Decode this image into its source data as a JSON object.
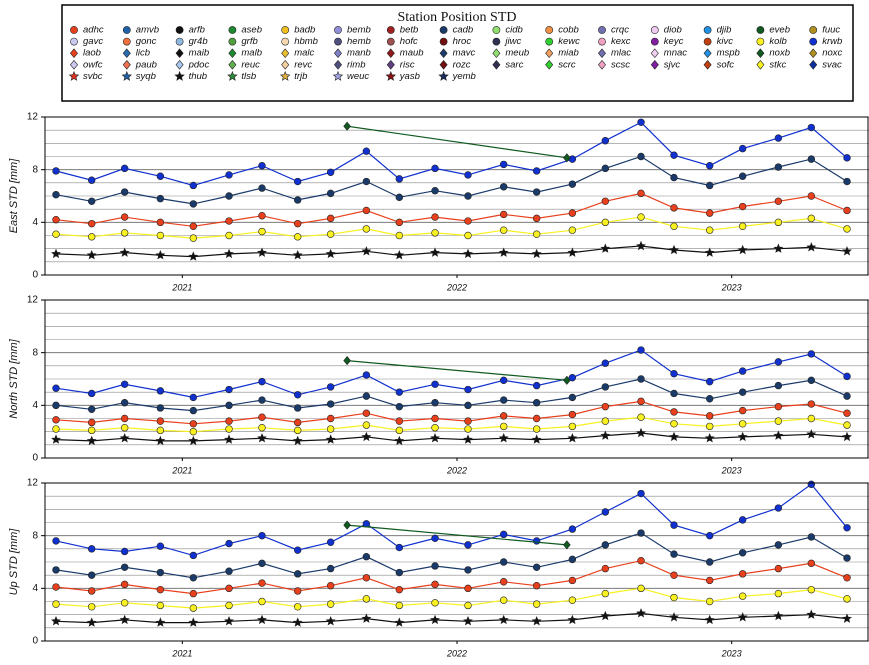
{
  "legend": {
    "title": "Station Position STD",
    "items": [
      {
        "name": "adhc",
        "color": "#e8401c",
        "marker": "circle"
      },
      {
        "name": "gavc",
        "color": "#c8c8f0",
        "marker": "circle"
      },
      {
        "name": "laob",
        "color": "#e8401c",
        "marker": "diamond"
      },
      {
        "name": "owfc",
        "color": "#d0c8f0",
        "marker": "diamond"
      },
      {
        "name": "svbc",
        "color": "#e03020",
        "marker": "star"
      },
      {
        "name": "amvb",
        "color": "#2060a8",
        "marker": "circle"
      },
      {
        "name": "gonc",
        "color": "#f07040",
        "marker": "circle"
      },
      {
        "name": "licb",
        "color": "#2a6cb0",
        "marker": "diamond"
      },
      {
        "name": "paub",
        "color": "#f07050",
        "marker": "diamond"
      },
      {
        "name": "syqb",
        "color": "#2060a8",
        "marker": "star"
      },
      {
        "name": "arfb",
        "color": "#111111",
        "marker": "circle"
      },
      {
        "name": "gr4b",
        "color": "#90b8e0",
        "marker": "circle"
      },
      {
        "name": "maib",
        "color": "#111111",
        "marker": "diamond"
      },
      {
        "name": "pdoc",
        "color": "#a8c8f0",
        "marker": "diamond"
      },
      {
        "name": "thub",
        "color": "#111111",
        "marker": "star"
      },
      {
        "name": "aseb",
        "color": "#1e8a30",
        "marker": "circle"
      },
      {
        "name": "grfb",
        "color": "#50a040",
        "marker": "circle"
      },
      {
        "name": "malb",
        "color": "#1e8a30",
        "marker": "diamond"
      },
      {
        "name": "reuc",
        "color": "#60b050",
        "marker": "diamond"
      },
      {
        "name": "tlsb",
        "color": "#2e8a3a",
        "marker": "star"
      },
      {
        "name": "badb",
        "color": "#f0c020",
        "marker": "circle"
      },
      {
        "name": "hbmb",
        "color": "#f5d8b0",
        "marker": "circle"
      },
      {
        "name": "malc",
        "color": "#e8c030",
        "marker": "diamond"
      },
      {
        "name": "revc",
        "color": "#f5d0a0",
        "marker": "diamond"
      },
      {
        "name": "trjb",
        "color": "#e0b040",
        "marker": "star"
      },
      {
        "name": "bemb",
        "color": "#9090d8",
        "marker": "circle"
      },
      {
        "name": "hemb",
        "color": "#505080",
        "marker": "circle"
      },
      {
        "name": "manb",
        "color": "#8080c8",
        "marker": "diamond"
      },
      {
        "name": "rimb",
        "color": "#505080",
        "marker": "diamond"
      },
      {
        "name": "weuc",
        "color": "#a0a0e0",
        "marker": "star"
      },
      {
        "name": "betb",
        "color": "#a02020",
        "marker": "circle"
      },
      {
        "name": "hofc",
        "color": "#a05050",
        "marker": "circle"
      },
      {
        "name": "maub",
        "color": "#901818",
        "marker": "diamond"
      },
      {
        "name": "risc",
        "color": "#604080",
        "marker": "diamond"
      },
      {
        "name": "yasb",
        "color": "#8a1010",
        "marker": "star"
      },
      {
        "name": "cadb",
        "color": "#1a3a6a",
        "marker": "circle"
      },
      {
        "name": "hroc",
        "color": "#701010",
        "marker": "circle"
      },
      {
        "name": "mavc",
        "color": "#1a3a6a",
        "marker": "diamond"
      },
      {
        "name": "rozc",
        "color": "#701010",
        "marker": "diamond"
      },
      {
        "name": "yemb",
        "color": "#1a2a5a",
        "marker": "star"
      },
      {
        "name": "cidb",
        "color": "#90e070",
        "marker": "circle"
      },
      {
        "name": "jiwc",
        "color": "#303050",
        "marker": "circle"
      },
      {
        "name": "meub",
        "color": "#90e070",
        "marker": "diamond"
      },
      {
        "name": "sarc",
        "color": "#303050",
        "marker": "diamond"
      },
      {
        "name": "cobb",
        "color": "#f09040",
        "marker": "circle"
      },
      {
        "name": "kewc",
        "color": "#30d030",
        "marker": "circle"
      },
      {
        "name": "miab",
        "color": "#f0a060",
        "marker": "diamond"
      },
      {
        "name": "scrc",
        "color": "#30d030",
        "marker": "diamond"
      },
      {
        "name": "crqc",
        "color": "#7070b0",
        "marker": "circle"
      },
      {
        "name": "kexc",
        "color": "#f0a0c0",
        "marker": "circle"
      },
      {
        "name": "mlac",
        "color": "#7070b0",
        "marker": "diamond"
      },
      {
        "name": "scsc",
        "color": "#f0a0c0",
        "marker": "diamond"
      },
      {
        "name": "diob",
        "color": "#f0c8f0",
        "marker": "circle"
      },
      {
        "name": "keyc",
        "color": "#8020a0",
        "marker": "circle"
      },
      {
        "name": "mnac",
        "color": "#f0d0f0",
        "marker": "diamond"
      },
      {
        "name": "sjvc",
        "color": "#8020a0",
        "marker": "diamond"
      },
      {
        "name": "djib",
        "color": "#2090e0",
        "marker": "circle"
      },
      {
        "name": "kivc",
        "color": "#c04010",
        "marker": "circle"
      },
      {
        "name": "mspb",
        "color": "#2090e0",
        "marker": "diamond"
      },
      {
        "name": "sofc",
        "color": "#c04010",
        "marker": "diamond"
      },
      {
        "name": "eveb",
        "color": "#105a20",
        "marker": "circle"
      },
      {
        "name": "kolb",
        "color": "#f8f020",
        "marker": "circle"
      },
      {
        "name": "noxb",
        "color": "#105a20",
        "marker": "diamond"
      },
      {
        "name": "stkc",
        "color": "#f8f020",
        "marker": "diamond"
      },
      {
        "name": "fuuc",
        "color": "#b09020",
        "marker": "circle"
      },
      {
        "name": "krwb",
        "color": "#1030d0",
        "marker": "circle"
      },
      {
        "name": "noxc",
        "color": "#b09020",
        "marker": "diamond"
      },
      {
        "name": "svac",
        "color": "#1030a0",
        "marker": "diamond"
      }
    ]
  },
  "chart_data": [
    {
      "type": "line",
      "ylabel": "East STD [mm]",
      "xlim": [
        2021.0,
        2024.0
      ],
      "ylim": [
        0,
        12
      ],
      "yticks": [
        0,
        4,
        8,
        12
      ],
      "minor_yticks": [
        1,
        2,
        3,
        5,
        6,
        7,
        9,
        10,
        11
      ],
      "grid": true,
      "xticks": [
        {
          "value": 2021.5,
          "label": "2021"
        },
        {
          "value": 2022.5,
          "label": "2022"
        },
        {
          "value": 2023.5,
          "label": "2023"
        }
      ],
      "x": [
        2021.04,
        2021.17,
        2021.29,
        2021.42,
        2021.54,
        2021.67,
        2021.79,
        2021.92,
        2022.04,
        2022.17,
        2022.29,
        2022.42,
        2022.54,
        2022.67,
        2022.79,
        2022.92,
        2023.04,
        2023.17,
        2023.29,
        2023.42,
        2023.54,
        2023.67,
        2023.79,
        2023.92
      ],
      "series": [
        {
          "name": "thub",
          "color": "#111111",
          "marker": "star",
          "values": [
            1.6,
            1.5,
            1.7,
            1.5,
            1.4,
            1.6,
            1.7,
            1.5,
            1.6,
            1.8,
            1.5,
            1.7,
            1.6,
            1.7,
            1.6,
            1.7,
            2.0,
            2.2,
            1.9,
            1.7,
            1.9,
            2.0,
            2.1,
            1.8
          ]
        },
        {
          "name": "kolb",
          "color": "#f8f020",
          "marker": "circle",
          "values": [
            3.1,
            2.9,
            3.2,
            3.0,
            2.8,
            3.0,
            3.3,
            2.9,
            3.1,
            3.5,
            3.0,
            3.2,
            3.0,
            3.4,
            3.1,
            3.4,
            4.0,
            4.4,
            3.7,
            3.4,
            3.7,
            4.0,
            4.3,
            3.5
          ]
        },
        {
          "name": "adhc",
          "color": "#e8401c",
          "marker": "circle",
          "values": [
            4.2,
            3.9,
            4.4,
            4.0,
            3.7,
            4.1,
            4.5,
            3.9,
            4.3,
            4.9,
            4.0,
            4.4,
            4.1,
            4.6,
            4.3,
            4.7,
            5.6,
            6.2,
            5.1,
            4.7,
            5.2,
            5.6,
            6.0,
            4.9
          ]
        },
        {
          "name": "cadb",
          "color": "#1a3a6a",
          "marker": "circle",
          "values": [
            6.1,
            5.6,
            6.3,
            5.8,
            5.4,
            6.0,
            6.6,
            5.7,
            6.2,
            7.1,
            5.9,
            6.4,
            6.0,
            6.7,
            6.3,
            6.9,
            8.1,
            9.0,
            7.4,
            6.8,
            7.5,
            8.2,
            8.8,
            7.1
          ]
        },
        {
          "name": "krwb",
          "color": "#1030d0",
          "marker": "circle",
          "values": [
            7.9,
            7.2,
            8.1,
            7.5,
            6.8,
            7.6,
            8.3,
            7.1,
            7.8,
            9.4,
            7.3,
            8.1,
            7.6,
            8.4,
            7.9,
            8.8,
            10.2,
            11.6,
            9.1,
            8.3,
            9.6,
            10.4,
            11.2,
            8.9
          ]
        },
        {
          "name": "noxb",
          "color": "#105a20",
          "marker": "diamond",
          "x": [
            2022.1,
            2022.9
          ],
          "values": [
            11.3,
            8.9
          ]
        }
      ]
    },
    {
      "type": "line",
      "ylabel": "North STD [mm]",
      "xlim": [
        2021.0,
        2024.0
      ],
      "ylim": [
        0,
        12
      ],
      "yticks": [
        0,
        4,
        8,
        12
      ],
      "minor_yticks": [
        1,
        2,
        3,
        5,
        6,
        7,
        9,
        10,
        11
      ],
      "grid": true,
      "xticks": [
        {
          "value": 2021.5,
          "label": "2021"
        },
        {
          "value": 2022.5,
          "label": "2022"
        },
        {
          "value": 2023.5,
          "label": "2023"
        }
      ],
      "x": [
        2021.04,
        2021.17,
        2021.29,
        2021.42,
        2021.54,
        2021.67,
        2021.79,
        2021.92,
        2022.04,
        2022.17,
        2022.29,
        2022.42,
        2022.54,
        2022.67,
        2022.79,
        2022.92,
        2023.04,
        2023.17,
        2023.29,
        2023.42,
        2023.54,
        2023.67,
        2023.79,
        2023.92
      ],
      "series": [
        {
          "name": "thub",
          "color": "#111111",
          "marker": "star",
          "values": [
            1.4,
            1.3,
            1.5,
            1.3,
            1.3,
            1.4,
            1.5,
            1.3,
            1.4,
            1.6,
            1.3,
            1.5,
            1.4,
            1.5,
            1.4,
            1.5,
            1.7,
            1.9,
            1.6,
            1.5,
            1.6,
            1.7,
            1.8,
            1.6
          ]
        },
        {
          "name": "kolb",
          "color": "#f8f020",
          "marker": "circle",
          "values": [
            2.2,
            2.1,
            2.3,
            2.1,
            2.0,
            2.2,
            2.3,
            2.1,
            2.2,
            2.5,
            2.1,
            2.3,
            2.2,
            2.4,
            2.2,
            2.4,
            2.8,
            3.1,
            2.6,
            2.4,
            2.6,
            2.8,
            3.0,
            2.5
          ]
        },
        {
          "name": "adhc",
          "color": "#e8401c",
          "marker": "circle",
          "values": [
            2.9,
            2.7,
            3.0,
            2.8,
            2.6,
            2.8,
            3.1,
            2.7,
            3.0,
            3.4,
            2.8,
            3.0,
            2.8,
            3.2,
            3.0,
            3.3,
            3.9,
            4.3,
            3.5,
            3.2,
            3.6,
            3.9,
            4.1,
            3.4
          ]
        },
        {
          "name": "cadb",
          "color": "#1a3a6a",
          "marker": "circle",
          "values": [
            4.0,
            3.7,
            4.2,
            3.8,
            3.6,
            4.0,
            4.4,
            3.8,
            4.1,
            4.7,
            3.9,
            4.2,
            4.0,
            4.4,
            4.2,
            4.6,
            5.4,
            6.0,
            4.9,
            4.5,
            5.0,
            5.5,
            5.9,
            4.7
          ]
        },
        {
          "name": "krwb",
          "color": "#1030d0",
          "marker": "circle",
          "values": [
            5.3,
            4.9,
            5.6,
            5.1,
            4.6,
            5.2,
            5.8,
            4.8,
            5.4,
            6.3,
            5.0,
            5.6,
            5.2,
            5.9,
            5.5,
            6.1,
            7.2,
            8.2,
            6.4,
            5.8,
            6.6,
            7.3,
            7.9,
            6.2
          ]
        },
        {
          "name": "noxb",
          "color": "#105a20",
          "marker": "diamond",
          "x": [
            2022.1,
            2022.9
          ],
          "values": [
            7.4,
            5.9
          ]
        }
      ]
    },
    {
      "type": "line",
      "ylabel": "Up STD [mm]",
      "xlim": [
        2021.0,
        2024.0
      ],
      "ylim": [
        0,
        12
      ],
      "yticks": [
        0,
        4,
        8,
        12
      ],
      "minor_yticks": [
        1,
        2,
        3,
        5,
        6,
        7,
        9,
        10,
        11
      ],
      "grid": true,
      "xticks": [
        {
          "value": 2021.5,
          "label": "2021"
        },
        {
          "value": 2022.5,
          "label": "2022"
        },
        {
          "value": 2023.5,
          "label": "2023"
        }
      ],
      "x": [
        2021.04,
        2021.17,
        2021.29,
        2021.42,
        2021.54,
        2021.67,
        2021.79,
        2021.92,
        2022.04,
        2022.17,
        2022.29,
        2022.42,
        2022.54,
        2022.67,
        2022.79,
        2022.92,
        2023.04,
        2023.17,
        2023.29,
        2023.42,
        2023.54,
        2023.67,
        2023.79,
        2023.92
      ],
      "series": [
        {
          "name": "thub",
          "color": "#111111",
          "marker": "star",
          "values": [
            1.5,
            1.4,
            1.6,
            1.4,
            1.4,
            1.5,
            1.6,
            1.4,
            1.5,
            1.7,
            1.4,
            1.6,
            1.5,
            1.6,
            1.5,
            1.6,
            1.9,
            2.1,
            1.8,
            1.6,
            1.8,
            1.9,
            2.0,
            1.7
          ]
        },
        {
          "name": "kolb",
          "color": "#f8f020",
          "marker": "circle",
          "values": [
            2.8,
            2.6,
            2.9,
            2.7,
            2.5,
            2.7,
            3.0,
            2.6,
            2.8,
            3.2,
            2.7,
            2.9,
            2.7,
            3.1,
            2.8,
            3.1,
            3.6,
            4.0,
            3.3,
            3.0,
            3.4,
            3.6,
            3.9,
            3.2
          ]
        },
        {
          "name": "adhc",
          "color": "#e8401c",
          "marker": "circle",
          "values": [
            4.1,
            3.8,
            4.3,
            3.9,
            3.6,
            4.0,
            4.4,
            3.8,
            4.2,
            4.8,
            3.9,
            4.3,
            4.0,
            4.5,
            4.2,
            4.6,
            5.5,
            6.1,
            5.0,
            4.6,
            5.1,
            5.5,
            5.9,
            4.8
          ]
        },
        {
          "name": "cadb",
          "color": "#1a3a6a",
          "marker": "circle",
          "values": [
            5.4,
            5.0,
            5.6,
            5.2,
            4.8,
            5.3,
            5.9,
            5.1,
            5.5,
            6.4,
            5.2,
            5.7,
            5.4,
            6.0,
            5.6,
            6.2,
            7.3,
            8.2,
            6.6,
            6.0,
            6.7,
            7.3,
            7.9,
            6.3
          ]
        },
        {
          "name": "krwb",
          "color": "#1030d0",
          "marker": "circle",
          "values": [
            7.6,
            7.0,
            6.8,
            7.2,
            6.5,
            7.4,
            8.0,
            6.9,
            7.5,
            8.9,
            7.1,
            7.8,
            7.3,
            8.1,
            7.6,
            8.5,
            9.8,
            11.2,
            8.8,
            8.0,
            9.2,
            10.1,
            11.9,
            8.6
          ]
        },
        {
          "name": "noxb",
          "color": "#105a20",
          "marker": "diamond",
          "x": [
            2022.1,
            2022.9
          ],
          "values": [
            8.8,
            7.3
          ]
        }
      ]
    }
  ]
}
